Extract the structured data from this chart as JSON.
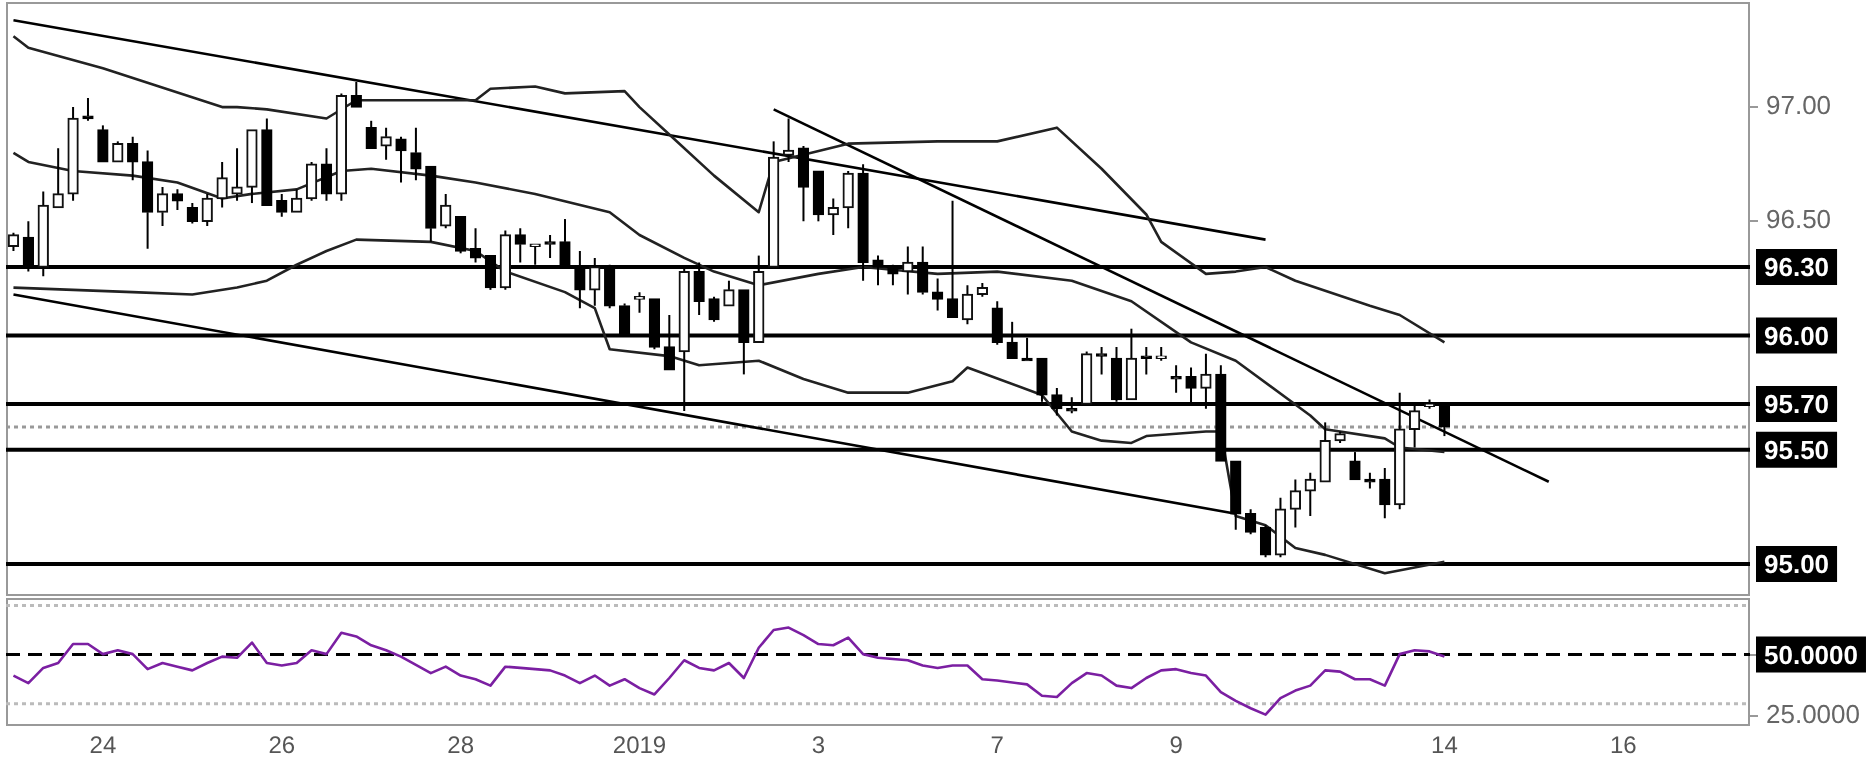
{
  "chart_data": [
    {
      "type": "candlestick",
      "tick_labels": "y",
      "categories": [
        null,
        null,
        null,
        null,
        null,
        null,
        null,
        null,
        null,
        null,
        null,
        null,
        null,
        null,
        null,
        null,
        null,
        null,
        null,
        null,
        null,
        null,
        null,
        null,
        null,
        null,
        null,
        null,
        null,
        null,
        null,
        null,
        null,
        null,
        null,
        null,
        null,
        null,
        null,
        null,
        null,
        null,
        null,
        null,
        null,
        null,
        null,
        null,
        null,
        null,
        null,
        null,
        null,
        null,
        null,
        null,
        null,
        null,
        null,
        null,
        null,
        null,
        null,
        null,
        null,
        null,
        null,
        null,
        null,
        null,
        null,
        null,
        null,
        null,
        null,
        null,
        null,
        null,
        null,
        null,
        null,
        null,
        null,
        null,
        null,
        null,
        null,
        null,
        null,
        null,
        null,
        null,
        null,
        null,
        null,
        null,
        null,
        null,
        null,
        null,
        null,
        null,
        null,
        null,
        null,
        null,
        null,
        null,
        null,
        null,
        null,
        null,
        null,
        null,
        null,
        null,
        null
      ],
      "ohlc": [
        [
          96.39,
          96.45,
          96.37,
          96.44
        ],
        [
          96.43,
          96.5,
          96.28,
          96.3
        ],
        [
          96.3,
          96.63,
          96.26,
          96.57
        ],
        [
          96.56,
          96.82,
          96.56,
          96.62
        ],
        [
          96.62,
          97.0,
          96.59,
          96.95
        ],
        [
          96.96,
          97.04,
          96.94,
          96.95
        ],
        [
          96.9,
          96.92,
          96.76,
          96.76
        ],
        [
          96.76,
          96.85,
          96.76,
          96.84
        ],
        [
          96.84,
          96.87,
          96.68,
          96.76
        ],
        [
          96.76,
          96.81,
          96.38,
          96.54
        ],
        [
          96.54,
          96.65,
          96.48,
          96.62
        ],
        [
          96.62,
          96.64,
          96.55,
          96.59
        ],
        [
          96.56,
          96.58,
          96.49,
          96.5
        ],
        [
          96.5,
          96.62,
          96.48,
          96.6
        ],
        [
          96.6,
          96.76,
          96.56,
          96.69
        ],
        [
          96.62,
          96.82,
          96.59,
          96.65
        ],
        [
          96.65,
          96.9,
          96.58,
          96.9
        ],
        [
          96.9,
          96.95,
          96.57,
          96.57
        ],
        [
          96.59,
          96.62,
          96.52,
          96.54
        ],
        [
          96.54,
          96.64,
          96.54,
          96.6
        ],
        [
          96.6,
          96.76,
          96.59,
          96.75
        ],
        [
          96.75,
          96.82,
          96.59,
          96.62
        ],
        [
          96.62,
          97.06,
          96.59,
          97.05
        ],
        [
          97.05,
          97.11,
          97.0,
          97.0
        ],
        [
          96.91,
          96.94,
          96.82,
          96.82
        ],
        [
          96.83,
          96.91,
          96.77,
          96.87
        ],
        [
          96.86,
          96.87,
          96.67,
          96.81
        ],
        [
          96.8,
          96.91,
          96.68,
          96.73
        ],
        [
          96.74,
          96.74,
          96.41,
          96.47
        ],
        [
          96.48,
          96.62,
          96.47,
          96.57
        ],
        [
          96.52,
          96.52,
          96.36,
          96.37
        ],
        [
          96.38,
          96.47,
          96.32,
          96.34
        ],
        [
          96.35,
          96.35,
          96.2,
          96.21
        ],
        [
          96.21,
          96.46,
          96.2,
          96.44
        ],
        [
          96.44,
          96.47,
          96.32,
          96.4
        ],
        [
          96.39,
          96.4,
          96.31,
          96.4
        ],
        [
          96.41,
          96.44,
          96.34,
          96.4
        ],
        [
          96.41,
          96.51,
          96.3,
          96.3
        ],
        [
          96.3,
          96.37,
          96.12,
          96.2
        ],
        [
          96.2,
          96.34,
          96.13,
          96.3
        ],
        [
          96.3,
          96.31,
          96.12,
          96.13
        ],
        [
          96.13,
          96.14,
          96.0,
          96.01
        ],
        [
          96.16,
          96.19,
          96.1,
          96.17
        ],
        [
          96.16,
          96.16,
          95.94,
          95.95
        ],
        [
          95.95,
          96.09,
          95.85,
          95.85
        ],
        [
          95.93,
          96.3,
          95.67,
          96.28
        ],
        [
          96.28,
          96.32,
          96.09,
          96.15
        ],
        [
          96.16,
          96.17,
          96.06,
          96.07
        ],
        [
          96.13,
          96.24,
          96.13,
          96.2
        ],
        [
          96.2,
          96.2,
          95.83,
          95.97
        ],
        [
          95.97,
          96.35,
          95.97,
          96.28
        ],
        [
          96.3,
          96.85,
          96.3,
          96.78
        ],
        [
          96.79,
          96.95,
          96.76,
          96.81
        ],
        [
          96.82,
          96.83,
          96.5,
          96.65
        ],
        [
          96.72,
          96.72,
          96.5,
          96.53
        ],
        [
          96.53,
          96.6,
          96.44,
          96.56
        ],
        [
          96.56,
          96.72,
          96.47,
          96.71
        ],
        [
          96.71,
          96.75,
          96.24,
          96.32
        ],
        [
          96.33,
          96.35,
          96.22,
          96.3
        ],
        [
          96.3,
          96.31,
          96.22,
          96.27
        ],
        [
          96.28,
          96.39,
          96.18,
          96.32
        ],
        [
          96.32,
          96.39,
          96.18,
          96.19
        ],
        [
          96.19,
          96.25,
          96.11,
          96.16
        ],
        [
          96.16,
          96.59,
          96.08,
          96.08
        ],
        [
          96.07,
          96.22,
          96.05,
          96.18
        ],
        [
          96.18,
          96.23,
          96.17,
          96.21
        ],
        [
          96.12,
          96.15,
          95.96,
          95.97
        ],
        [
          95.97,
          96.06,
          95.9,
          95.9
        ],
        [
          95.9,
          95.99,
          95.89,
          95.89
        ],
        [
          95.9,
          95.9,
          95.71,
          95.74
        ],
        [
          95.74,
          95.77,
          95.65,
          95.68
        ],
        [
          95.68,
          95.73,
          95.66,
          95.67
        ],
        [
          95.7,
          95.93,
          95.7,
          95.92
        ],
        [
          95.92,
          95.95,
          95.83,
          95.91
        ],
        [
          95.9,
          95.95,
          95.71,
          95.72
        ],
        [
          95.72,
          96.03,
          95.72,
          95.9
        ],
        [
          95.91,
          95.95,
          95.83,
          95.9
        ],
        [
          95.9,
          95.95,
          95.89,
          95.91
        ],
        [
          95.82,
          95.87,
          95.75,
          95.81
        ],
        [
          95.82,
          95.86,
          95.7,
          95.77
        ],
        [
          95.77,
          95.92,
          95.68,
          95.83
        ],
        [
          95.83,
          95.87,
          95.45,
          95.45
        ],
        [
          95.45,
          95.45,
          95.15,
          95.22
        ],
        [
          95.22,
          95.24,
          95.13,
          95.14
        ],
        [
          95.16,
          95.17,
          95.03,
          95.04
        ],
        [
          95.04,
          95.29,
          95.03,
          95.24
        ],
        [
          95.24,
          95.37,
          95.16,
          95.32
        ],
        [
          95.32,
          95.4,
          95.21,
          95.37
        ],
        [
          95.36,
          95.62,
          95.36,
          95.54
        ],
        [
          95.54,
          95.58,
          95.53,
          95.57
        ],
        [
          95.45,
          95.49,
          95.37,
          95.37
        ],
        [
          95.37,
          95.4,
          95.33,
          95.36
        ],
        [
          95.37,
          95.42,
          95.2,
          95.26
        ],
        [
          95.26,
          95.75,
          95.24,
          95.59
        ],
        [
          95.59,
          95.7,
          95.51,
          95.67
        ],
        [
          95.69,
          95.72,
          95.68,
          95.7
        ],
        [
          95.7,
          95.7,
          95.56,
          95.6
        ],
        null,
        null,
        null,
        null,
        null,
        null,
        null,
        null,
        null,
        null,
        null,
        null,
        null,
        null,
        null,
        null,
        null,
        null,
        null,
        null
      ],
      "series": [
        {
          "type": "line",
          "color": "#222222",
          "values": [
            97.31,
            97.26,
            null,
            null,
            null,
            null,
            97.17,
            null,
            null,
            null,
            null,
            null,
            null,
            null,
            97.0,
            97.0,
            null,
            96.99,
            null,
            null,
            null,
            96.95,
            null,
            97.03,
            null,
            null,
            97.03,
            null,
            null,
            null,
            null,
            97.03,
            97.08,
            null,
            null,
            97.09,
            null,
            97.06,
            null,
            null,
            null,
            97.07,
            97.0,
            null,
            96.88,
            null,
            null,
            96.7,
            null,
            null,
            96.54,
            96.76,
            null,
            null,
            null,
            null,
            96.84,
            null,
            null,
            null,
            null,
            null,
            96.85,
            null,
            null,
            null,
            96.85,
            null,
            null,
            null,
            96.91,
            null,
            null,
            96.73,
            null,
            null,
            96.53,
            96.41,
            null,
            null,
            96.27,
            null,
            96.28,
            null,
            96.3,
            null,
            96.24,
            null,
            null,
            null,
            null,
            96.13,
            null,
            96.09,
            null,
            null,
            95.97,
            null,
            null,
            null,
            null,
            null,
            null,
            null,
            null,
            null,
            null,
            null,
            null,
            null,
            null,
            null,
            null,
            null,
            null,
            null,
            null
          ]
        },
        {
          "type": "line",
          "color": "#222222",
          "values": [
            96.8,
            96.76,
            null,
            null,
            96.72,
            null,
            null,
            null,
            96.7,
            null,
            null,
            96.67,
            null,
            null,
            96.6,
            null,
            96.62,
            null,
            null,
            96.64,
            null,
            null,
            96.72,
            null,
            96.73,
            null,
            null,
            null,
            96.7,
            null,
            null,
            96.67,
            null,
            null,
            null,
            96.62,
            null,
            null,
            null,
            null,
            96.54,
            null,
            96.44,
            null,
            null,
            96.34,
            null,
            96.28,
            null,
            null,
            96.22,
            null,
            null,
            null,
            96.27,
            null,
            null,
            96.3,
            null,
            null,
            null,
            null,
            96.27,
            null,
            null,
            null,
            96.28,
            null,
            null,
            null,
            null,
            96.24,
            null,
            null,
            null,
            96.15,
            null,
            null,
            null,
            95.97,
            null,
            null,
            95.89,
            null,
            null,
            null,
            null,
            95.65,
            95.59,
            null,
            null,
            null,
            95.55,
            95.51,
            null,
            null,
            95.49,
            null,
            null,
            null,
            null,
            null,
            null,
            null,
            null,
            null,
            null,
            null,
            null,
            null,
            null,
            null,
            null,
            null,
            null,
            null,
            null
          ]
        },
        {
          "type": "line",
          "color": "#222222",
          "values": [
            96.21,
            null,
            null,
            null,
            null,
            null,
            null,
            null,
            96.19,
            null,
            null,
            null,
            96.18,
            null,
            null,
            96.21,
            null,
            96.24,
            null,
            96.31,
            null,
            96.37,
            null,
            96.42,
            null,
            null,
            null,
            null,
            96.41,
            null,
            null,
            96.37,
            null,
            96.28,
            null,
            null,
            null,
            96.19,
            null,
            96.12,
            95.94,
            null,
            null,
            null,
            95.91,
            null,
            95.87,
            null,
            null,
            null,
            95.89,
            null,
            null,
            95.81,
            null,
            null,
            95.75,
            null,
            null,
            null,
            95.75,
            null,
            null,
            95.8,
            95.86,
            null,
            null,
            null,
            null,
            95.74,
            null,
            95.58,
            null,
            95.54,
            null,
            95.53,
            95.56,
            null,
            null,
            null,
            95.58,
            95.58,
            95.21,
            null,
            95.17,
            null,
            95.07,
            null,
            95.04,
            null,
            null,
            null,
            94.96,
            null,
            null,
            null,
            95.01,
            null,
            null,
            null,
            null,
            null,
            null,
            null,
            null,
            null,
            null,
            null,
            null,
            null,
            null,
            null,
            null,
            null,
            null,
            null,
            null
          ]
        },
        {
          "type": "line",
          "color": "#000000",
          "values": [
            97.38,
            null,
            null,
            null,
            null,
            null,
            null,
            null,
            null,
            null,
            null,
            null,
            null,
            null,
            null,
            null,
            null,
            null,
            null,
            null,
            null,
            null,
            null,
            null,
            null,
            null,
            null,
            null,
            null,
            null,
            null,
            null,
            null,
            null,
            null,
            null,
            null,
            null,
            null,
            null,
            null,
            null,
            null,
            null,
            null,
            null,
            null,
            null,
            null,
            null,
            null,
            null,
            null,
            null,
            null,
            null,
            null,
            null,
            null,
            null,
            null,
            null,
            null,
            null,
            null,
            null,
            null,
            null,
            null,
            null,
            null,
            null,
            null,
            null,
            null,
            null,
            null,
            null,
            null,
            null,
            null,
            null,
            null,
            null,
            96.42,
            null,
            null,
            null,
            null,
            null,
            null,
            null,
            null,
            null,
            null,
            null,
            null,
            null,
            null,
            null,
            null,
            null,
            null,
            null,
            null,
            null,
            null,
            null,
            null,
            null,
            null,
            null,
            null,
            null,
            null,
            null,
            null
          ]
        },
        {
          "type": "line",
          "color": "#000000",
          "values": [
            96.18,
            null,
            null,
            null,
            null,
            null,
            null,
            null,
            null,
            null,
            null,
            null,
            null,
            null,
            null,
            null,
            null,
            null,
            null,
            null,
            null,
            null,
            null,
            null,
            null,
            null,
            null,
            null,
            null,
            null,
            null,
            null,
            null,
            null,
            null,
            null,
            null,
            null,
            null,
            null,
            null,
            null,
            null,
            null,
            null,
            null,
            null,
            null,
            null,
            null,
            null,
            null,
            null,
            null,
            null,
            null,
            null,
            null,
            null,
            null,
            null,
            null,
            null,
            null,
            null,
            null,
            null,
            null,
            null,
            null,
            null,
            null,
            null,
            null,
            null,
            null,
            null,
            null,
            null,
            null,
            null,
            null,
            95.22,
            null,
            null,
            null,
            null,
            null,
            null,
            null,
            null,
            null,
            null,
            null,
            null,
            null,
            null,
            null,
            null,
            null,
            null,
            null,
            null,
            null,
            null,
            null,
            null,
            null,
            null,
            null,
            null,
            null,
            null,
            null,
            null,
            null,
            null
          ]
        },
        {
          "type": "line",
          "color": "#000000",
          "values": [
            null,
            null,
            null,
            null,
            null,
            null,
            null,
            null,
            null,
            null,
            null,
            null,
            null,
            null,
            null,
            null,
            null,
            null,
            null,
            null,
            null,
            null,
            null,
            null,
            null,
            null,
            null,
            null,
            null,
            null,
            null,
            null,
            null,
            null,
            null,
            null,
            null,
            null,
            null,
            null,
            null,
            null,
            null,
            null,
            null,
            null,
            null,
            null,
            null,
            null,
            null,
            96.99,
            null,
            null,
            null,
            null,
            null,
            null,
            null,
            null,
            null,
            null,
            null,
            null,
            null,
            null,
            null,
            null,
            null,
            null,
            null,
            null,
            null,
            null,
            null,
            null,
            null,
            null,
            null,
            null,
            null,
            null,
            null,
            null,
            null,
            null,
            null,
            null,
            null,
            null,
            null,
            null,
            null,
            null,
            null,
            null,
            null,
            null,
            null,
            null,
            null,
            null,
            null,
            95.36,
            null,
            null,
            null,
            null,
            null,
            null,
            null,
            null,
            null,
            null,
            null,
            null,
            null
          ]
        }
      ],
      "ylim": [
        94.86,
        97.46
      ],
      "yticks": [
        {
          "value": 97,
          "label": "97.00"
        },
        {
          "value": 96.5,
          "label": "96.50"
        }
      ],
      "ref_lines": [
        {
          "axis": "y",
          "value": 96.3,
          "label": "96.30",
          "color": "#000000"
        },
        {
          "axis": "y",
          "value": 96.0,
          "label": "96.00",
          "color": "#000000"
        },
        {
          "axis": "y",
          "value": 95.7,
          "label": "95.70",
          "color": "#000000"
        },
        {
          "axis": "y",
          "value": 95.6,
          "color": "#999999",
          "line_style": "dotted"
        },
        {
          "axis": "y",
          "value": 95.5,
          "label": "95.50",
          "color": "#000000"
        },
        {
          "axis": "y",
          "value": 95.0,
          "label": "95.00",
          "color": "#000000"
        }
      ]
    },
    {
      "type": "line",
      "categories": [
        null,
        null,
        null,
        null,
        null,
        null,
        "24",
        null,
        null,
        null,
        null,
        null,
        null,
        null,
        null,
        null,
        null,
        null,
        "26",
        null,
        null,
        null,
        null,
        null,
        null,
        null,
        null,
        null,
        null,
        null,
        "28",
        null,
        null,
        null,
        null,
        null,
        null,
        null,
        null,
        null,
        null,
        null,
        "2019",
        null,
        null,
        null,
        null,
        null,
        null,
        null,
        null,
        null,
        null,
        null,
        "3",
        null,
        null,
        null,
        null,
        null,
        null,
        null,
        null,
        null,
        null,
        null,
        "7",
        null,
        null,
        null,
        null,
        null,
        null,
        null,
        null,
        null,
        null,
        null,
        "9",
        null,
        null,
        null,
        null,
        null,
        null,
        null,
        null,
        null,
        null,
        null,
        null,
        null,
        null,
        null,
        null,
        null,
        "14",
        null,
        null,
        null,
        null,
        null,
        null,
        null,
        null,
        null,
        null,
        null,
        "16",
        null,
        null,
        null,
        null,
        null,
        null,
        null,
        null
      ],
      "series": [
        {
          "color": "#7b1fa2",
          "values": [
            41.5,
            38.4,
            44.6,
            46.6,
            54.3,
            54.3,
            50.2,
            51.8,
            50.2,
            44.1,
            46.6,
            45.1,
            43.6,
            46.6,
            49.2,
            48.7,
            54.9,
            46.6,
            45.6,
            46.6,
            51.8,
            50.2,
            58.9,
            57.4,
            53.8,
            51.8,
            49.2,
            null,
            42.5,
            45.1,
            41.5,
            40.0,
            37.4,
            45.1,
            44.6,
            null,
            43.6,
            41.5,
            38.4,
            41.5,
            37.4,
            40.0,
            36.4,
            33.8,
            40.5,
            47.7,
            44.6,
            43.6,
            46.6,
            40.5,
            52.8,
            60.0,
            61.0,
            57.9,
            54.3,
            53.8,
            56.9,
            50.2,
            48.7,
            48.2,
            47.7,
            45.6,
            44.6,
            45.6,
            45.6,
            40.0,
            39.5,
            null,
            37.9,
            33.3,
            32.8,
            38.4,
            42.5,
            41.5,
            37.4,
            36.4,
            40.5,
            43.6,
            44.1,
            42.5,
            41.5,
            34.8,
            31.2,
            28.2,
            25.6,
            32.3,
            35.4,
            37.4,
            43.6,
            43.1,
            40.0,
            40.0,
            37.4,
            50.2,
            51.8,
            51.3,
            49.2,
            null,
            null,
            null,
            null,
            null,
            null,
            null,
            null,
            null,
            null,
            null,
            null,
            null,
            null,
            null,
            null,
            null,
            null,
            null,
            null
          ]
        }
      ],
      "ylim": [
        21,
        73
      ],
      "yticks": [
        {
          "value": 50,
          "label": "50.0000"
        },
        {
          "value": 25,
          "label": "25.0000"
        }
      ],
      "ref_lines": [
        {
          "axis": "y",
          "value": 70,
          "color": "#bbbbbb",
          "line_style": "dotted"
        },
        {
          "axis": "y",
          "value": 50,
          "color": "#000000",
          "line_style": "dashed"
        },
        {
          "axis": "y",
          "value": 30,
          "color": "#bbbbbb",
          "line_style": "dotted"
        }
      ]
    }
  ]
}
